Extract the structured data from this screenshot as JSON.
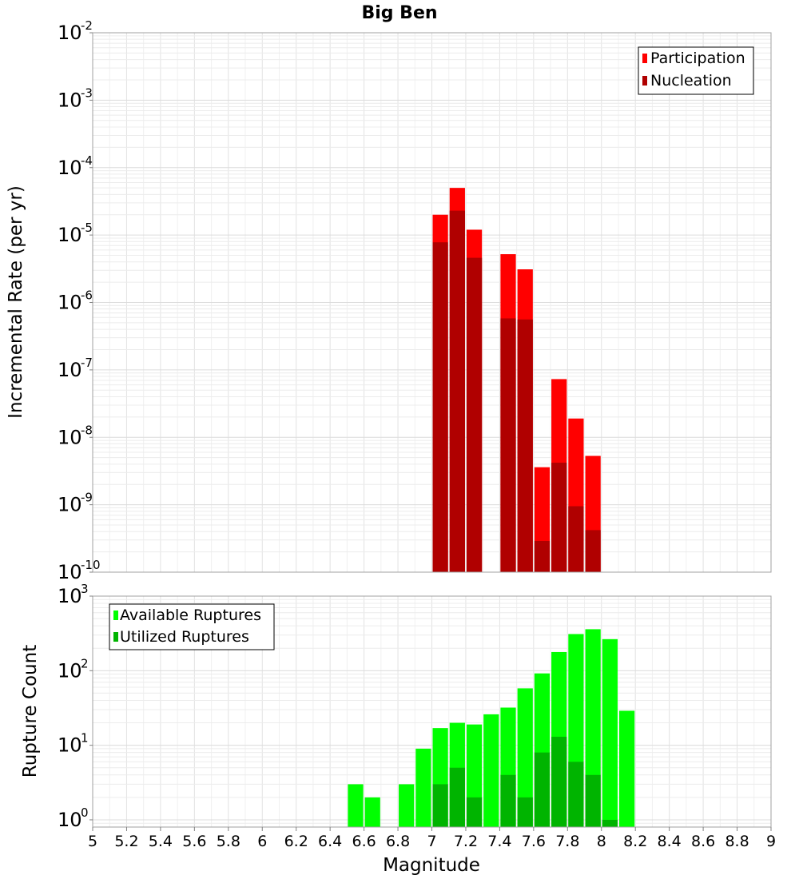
{
  "chart_data": [
    {
      "type": "bar",
      "title": "Big Ben",
      "ylabel": "Incremental Rate (per yr)",
      "xlabel": "",
      "xlim": [
        5,
        9
      ],
      "ylim": [
        1e-10,
        0.01
      ],
      "yscale": "log",
      "bar_width": 0.1,
      "grid": true,
      "legend_position": "top-right",
      "series": [
        {
          "name": "Participation",
          "color": "#ff0000",
          "x": [
            7.05,
            7.15,
            7.25,
            7.45,
            7.55,
            7.65,
            7.75,
            7.85,
            7.95
          ],
          "values": [
            2e-05,
            5e-05,
            1.2e-05,
            5.2e-06,
            3.1e-06,
            3.6e-09,
            7.3e-08,
            1.9e-08,
            5.3e-09
          ]
        },
        {
          "name": "Nucleation",
          "color": "#b00000",
          "x": [
            7.05,
            7.15,
            7.25,
            7.45,
            7.55,
            7.65,
            7.75,
            7.85,
            7.95
          ],
          "values": [
            7.8e-06,
            2.3e-05,
            4.6e-06,
            5.8e-07,
            5.6e-07,
            2.9e-10,
            4.2e-09,
            9.5e-10,
            4.2e-10
          ]
        }
      ]
    },
    {
      "type": "bar",
      "title": "",
      "ylabel": "Rupture Count",
      "xlabel": "Magnitude",
      "xlim": [
        5,
        9
      ],
      "ylim": [
        0.8,
        1000
      ],
      "yscale": "log",
      "bar_width": 0.1,
      "grid": true,
      "legend_position": "top-left",
      "x_ticks": [
        "5",
        "5.2",
        "5.4",
        "5.6",
        "5.8",
        "6",
        "6.2",
        "6.4",
        "6.6",
        "6.8",
        "7",
        "7.2",
        "7.4",
        "7.6",
        "7.8",
        "8",
        "8.2",
        "8.4",
        "8.6",
        "8.8",
        "9"
      ],
      "series": [
        {
          "name": "Available Ruptures",
          "color": "#00ff00",
          "x": [
            6.55,
            6.65,
            6.85,
            6.95,
            7.05,
            7.15,
            7.25,
            7.35,
            7.45,
            7.55,
            7.65,
            7.75,
            7.85,
            7.95,
            8.05,
            8.15
          ],
          "values": [
            3,
            2,
            3,
            9,
            17,
            20,
            19,
            26,
            32,
            58,
            92,
            178,
            310,
            360,
            265,
            29
          ]
        },
        {
          "name": "Utilized Ruptures",
          "color": "#00b400",
          "x": [
            7.05,
            7.15,
            7.25,
            7.45,
            7.55,
            7.65,
            7.75,
            7.85,
            7.95,
            8.05
          ],
          "values": [
            3,
            5,
            2,
            4,
            2,
            8,
            13,
            6,
            4,
            1
          ]
        }
      ]
    }
  ]
}
